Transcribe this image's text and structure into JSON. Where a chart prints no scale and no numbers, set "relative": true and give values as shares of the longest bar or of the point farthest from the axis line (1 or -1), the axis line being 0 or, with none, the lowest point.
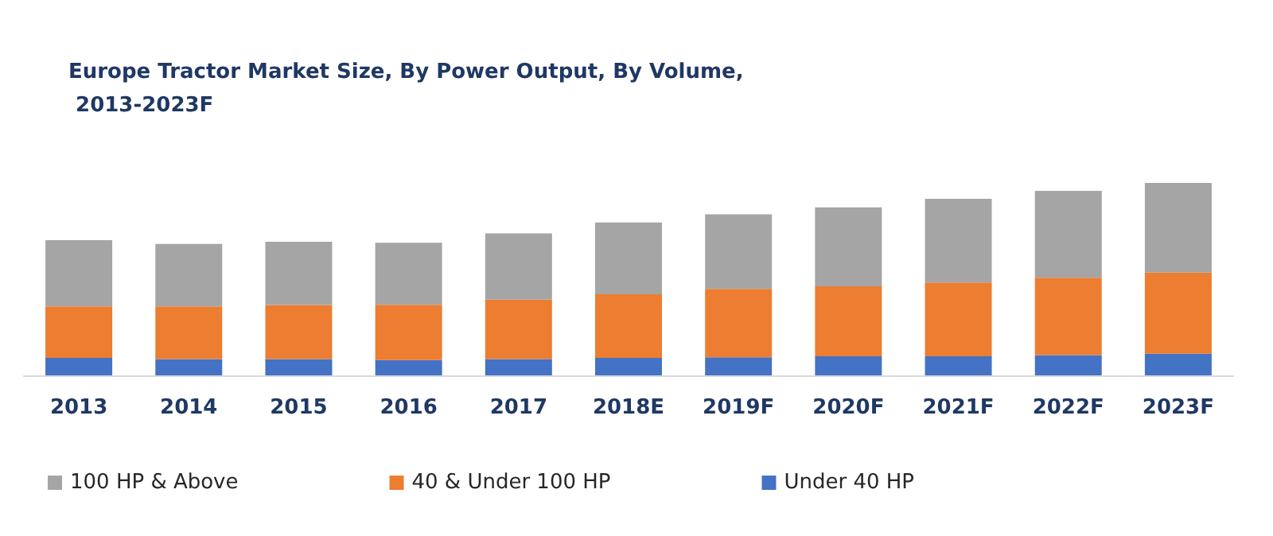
{
  "chart_data": {
    "type": "bar",
    "title": "Europe Tractor Market Size, By Power Output, By Volume, 2013-2023F",
    "categories": [
      "2013",
      "2014",
      "2015",
      "2016",
      "2017",
      "2018E",
      "2019F",
      "2020F",
      "2021F",
      "2022F",
      "2023F"
    ],
    "stacked": true,
    "relative": true,
    "legend": "bottom",
    "series": [
      {
        "name": "Under 40 HP",
        "color": "#4472c4",
        "values": [
          0.091,
          0.085,
          0.085,
          0.08,
          0.085,
          0.091,
          0.094,
          0.099,
          0.099,
          0.105,
          0.113
        ]
      },
      {
        "name": "40 & Under 100 HP",
        "color": "#ed7d31",
        "values": [
          0.267,
          0.273,
          0.281,
          0.287,
          0.309,
          0.331,
          0.355,
          0.364,
          0.383,
          0.402,
          0.421
        ]
      },
      {
        "name": "100 HP & Above",
        "color": "#a5a5a5",
        "values": [
          0.344,
          0.325,
          0.328,
          0.322,
          0.344,
          0.372,
          0.388,
          0.41,
          0.435,
          0.452,
          0.466
        ]
      }
    ]
  }
}
